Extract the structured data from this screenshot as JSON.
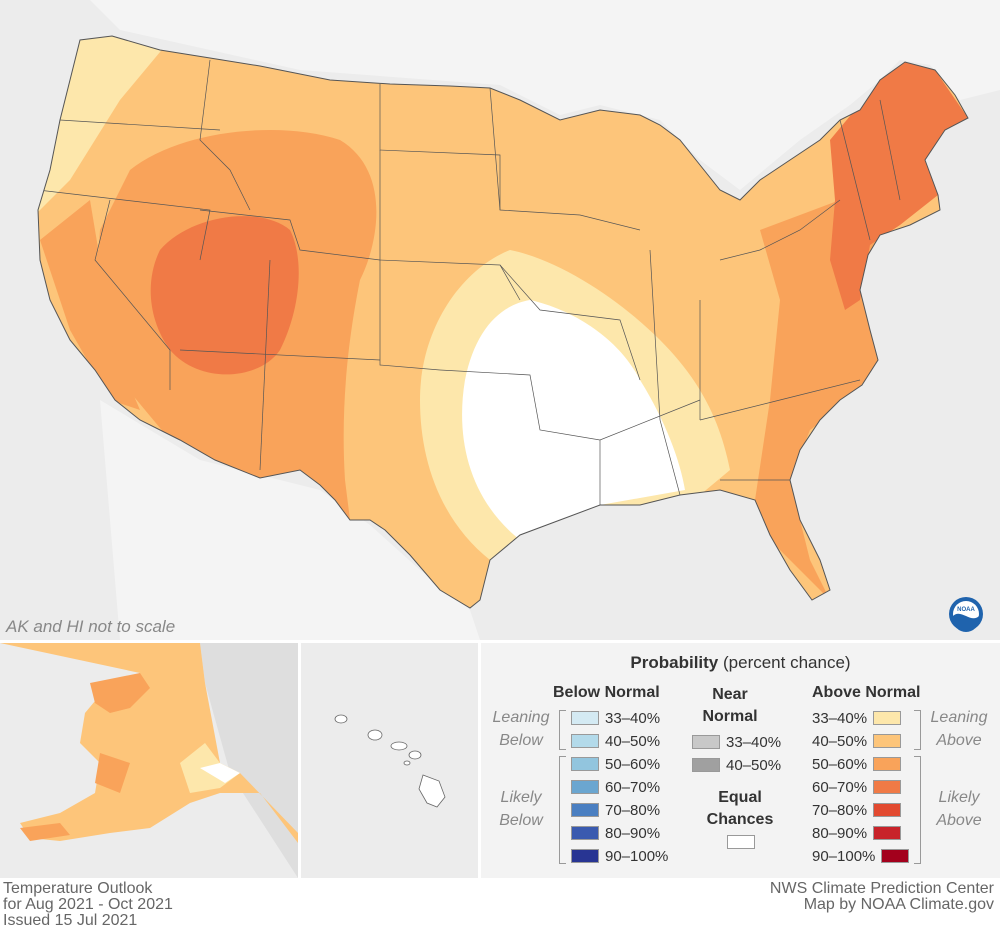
{
  "map": {
    "scale_note": "AK and HI not to scale",
    "logo_icon": "noaa-logo-icon",
    "background_color": "#ececec",
    "land_outside_color": "#f4f4f4",
    "border_color": "#555555"
  },
  "legend": {
    "title_bold": "Probability",
    "title_rest": "(percent chance)",
    "below": {
      "heading": "Below Normal",
      "leaning_label": [
        "Leaning",
        "Below"
      ],
      "likely_label": [
        "Likely",
        "Below"
      ],
      "rows": [
        {
          "label": "33–40%",
          "color": "#d4eaf3"
        },
        {
          "label": "40–50%",
          "color": "#b3daea"
        },
        {
          "label": "50–60%",
          "color": "#92c5de"
        },
        {
          "label": "60–70%",
          "color": "#6ba6d0"
        },
        {
          "label": "70–80%",
          "color": "#4a7fc1"
        },
        {
          "label": "80–90%",
          "color": "#3a5aaf"
        },
        {
          "label": "90–100%",
          "color": "#283593"
        }
      ]
    },
    "near": {
      "heading": [
        "Near",
        "Normal"
      ],
      "rows": [
        {
          "label": "33–40%",
          "color": "#c8c8c8"
        },
        {
          "label": "40–50%",
          "color": "#a0a0a0"
        }
      ],
      "equal_heading": [
        "Equal",
        "Chances"
      ],
      "equal_color": "#ffffff"
    },
    "above": {
      "heading": "Above Normal",
      "leaning_label": [
        "Leaning",
        "Above"
      ],
      "likely_label": [
        "Likely",
        "Above"
      ],
      "rows": [
        {
          "label": "33–40%",
          "color": "#fde7ab"
        },
        {
          "label": "40–50%",
          "color": "#fdc57a"
        },
        {
          "label": "50–60%",
          "color": "#f9a35a"
        },
        {
          "label": "60–70%",
          "color": "#f07a46"
        },
        {
          "label": "70–80%",
          "color": "#e24a30"
        },
        {
          "label": "80–90%",
          "color": "#c8232a"
        },
        {
          "label": "90–100%",
          "color": "#a3001c"
        }
      ]
    }
  },
  "footer": {
    "left": [
      "Temperature Outlook",
      "for Aug 2021 - Oct 2021",
      "Issued 15 Jul 2021"
    ],
    "right": [
      "NWS Climate Prediction Center",
      "Map by NOAA Climate.gov"
    ]
  }
}
